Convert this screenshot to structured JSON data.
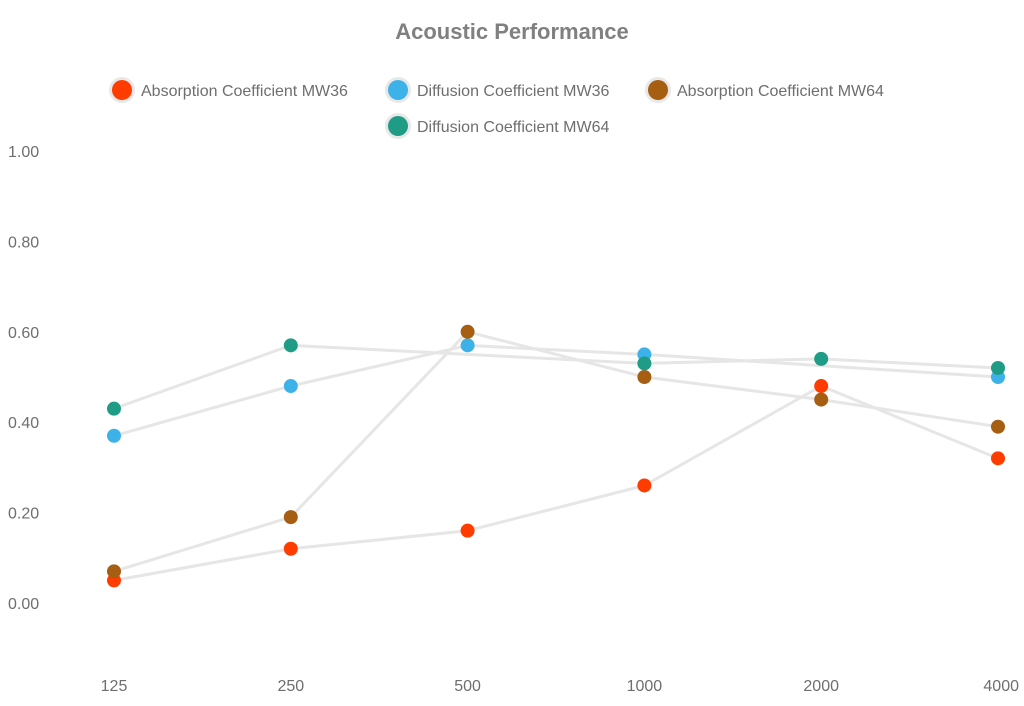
{
  "chart_data": {
    "type": "line",
    "title": "Acoustic Performance",
    "xlabel": "",
    "ylabel": "",
    "categories": [
      "125",
      "250",
      "500",
      "1000",
      "2000",
      "4000"
    ],
    "y_ticks": [
      "0.00",
      "0.20",
      "0.40",
      "0.60",
      "0.80",
      "1.00"
    ],
    "ylim": [
      -0.13,
      1.0
    ],
    "grid": false,
    "legend_position": "top-center",
    "series": [
      {
        "name": "Absorption Coefficient MW36",
        "color": "#ff3d00",
        "values": [
          0.05,
          0.12,
          0.16,
          0.26,
          0.48,
          0.32
        ]
      },
      {
        "name": "Diffusion Coefficient MW36",
        "color": "#3cb2e8",
        "values": [
          0.37,
          0.48,
          0.57,
          0.55,
          null,
          0.5
        ]
      },
      {
        "name": "Absorption Coefficient MW64",
        "color": "#a65e13",
        "values": [
          0.07,
          0.19,
          0.6,
          0.5,
          0.45,
          0.39
        ]
      },
      {
        "name": "Diffusion Coefficient MW64",
        "color": "#1f9c85",
        "values": [
          0.43,
          0.57,
          null,
          0.53,
          0.54,
          0.52
        ]
      }
    ]
  }
}
